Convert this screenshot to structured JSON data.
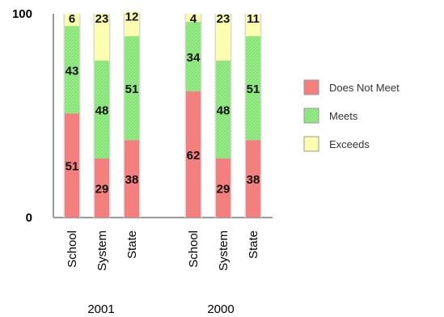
{
  "chart_data": {
    "type": "bar",
    "stacked": true,
    "groups": [
      {
        "label": "2001",
        "categories": [
          "School",
          "System",
          "State"
        ]
      },
      {
        "label": "2000",
        "categories": [
          "School",
          "System",
          "State"
        ]
      }
    ],
    "series": [
      {
        "name": "Does Not Meet",
        "color": "#f47f7f",
        "values": [
          51,
          29,
          38,
          62,
          29,
          38
        ]
      },
      {
        "name": "Meets",
        "color": "#94ec84",
        "values": [
          43,
          48,
          51,
          34,
          48,
          51
        ]
      },
      {
        "name": "Exceeds",
        "color": "#fdfdb0",
        "values": [
          6,
          23,
          12,
          4,
          23,
          11
        ]
      }
    ],
    "ylim": [
      0,
      100
    ],
    "yticks": [
      "0",
      "100"
    ],
    "grid": false,
    "legend": "right"
  }
}
